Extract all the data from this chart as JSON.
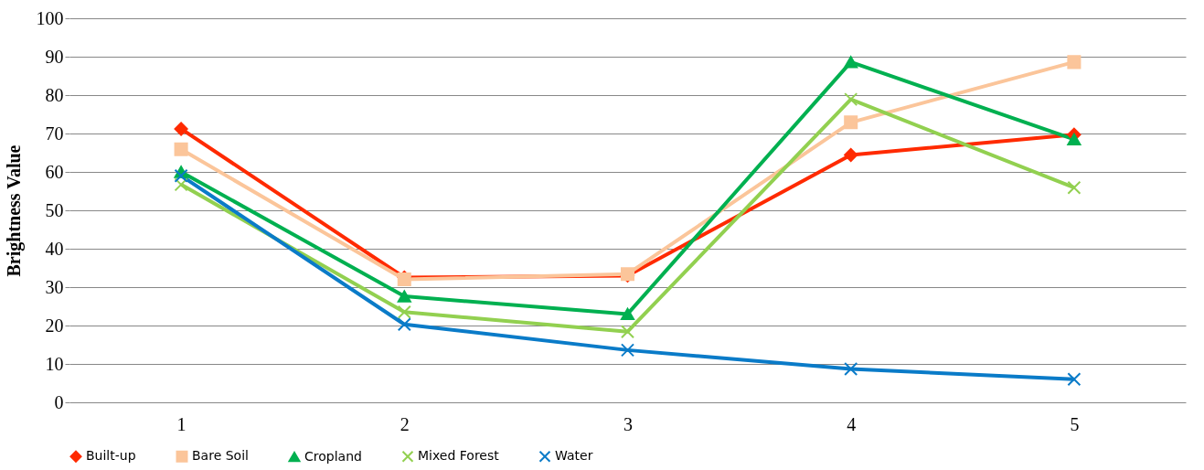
{
  "chart_data": {
    "type": "line",
    "ylabel": "Brightness Value",
    "categories": [
      "1",
      "2",
      "3",
      "4",
      "5"
    ],
    "ylim": [
      0,
      100
    ],
    "yticks": [
      0,
      10,
      20,
      30,
      40,
      50,
      60,
      70,
      80,
      90,
      100
    ],
    "grid": "y",
    "legend": "bottom",
    "series": [
      {
        "name": "Built-up",
        "color": "#ff2a00",
        "marker": "diamond",
        "values": [
          71.2,
          32.5,
          33.0,
          64.4,
          69.7
        ]
      },
      {
        "name": "Bare Soil",
        "color": "#fbc59a",
        "marker": "square",
        "values": [
          65.9,
          32.0,
          33.4,
          72.9,
          88.6
        ]
      },
      {
        "name": "Cropland",
        "color": "#00b050",
        "marker": "triangle",
        "values": [
          60.0,
          27.6,
          23.0,
          88.6,
          68.5
        ]
      },
      {
        "name": "Mixed Forest",
        "color": "#92d050",
        "marker": "cross",
        "values": [
          56.7,
          23.5,
          18.4,
          78.9,
          55.9
        ]
      },
      {
        "name": "Water",
        "color": "#0a7bc8",
        "marker": "cross",
        "values": [
          59.0,
          20.3,
          13.6,
          8.7,
          6.0
        ]
      }
    ]
  }
}
